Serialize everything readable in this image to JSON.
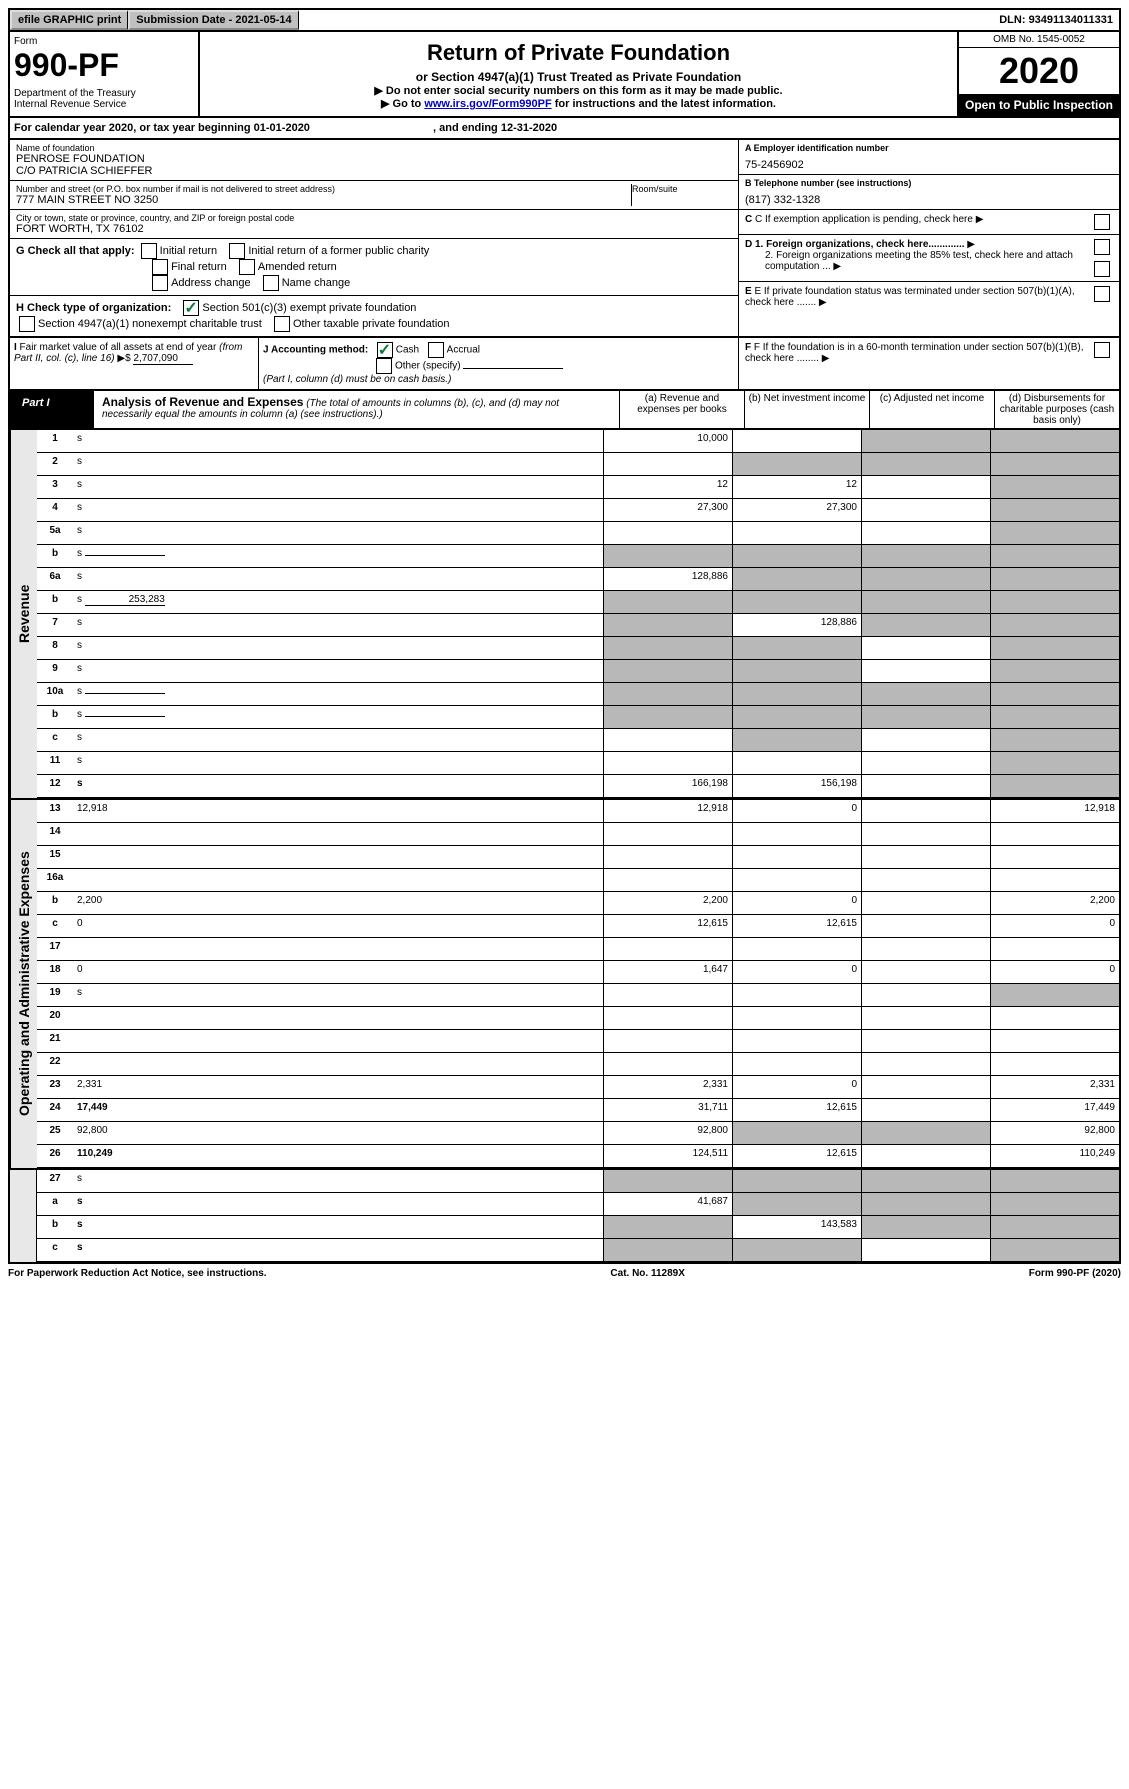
{
  "topbar": {
    "efile": "efile GRAPHIC print",
    "subdate_label": "Submission Date - ",
    "subdate": "2021-05-14",
    "dln_label": "DLN: ",
    "dln": "93491134011331"
  },
  "header": {
    "form_label": "Form",
    "form_number": "990-PF",
    "dept": "Department of the Treasury\nInternal Revenue Service",
    "title": "Return of Private Foundation",
    "subtitle": "or Section 4947(a)(1) Trust Treated as Private Foundation",
    "note1": "▶ Do not enter social security numbers on this form as it may be made public.",
    "note2_pre": "▶ Go to ",
    "note2_link": "www.irs.gov/Form990PF",
    "note2_post": " for instructions and the latest information.",
    "omb": "OMB No. 1545-0052",
    "year": "2020",
    "open": "Open to Public Inspection"
  },
  "calyear": {
    "text_pre": "For calendar year 2020, or tax year beginning ",
    "begin": "01-01-2020",
    "text_mid": " , and ending ",
    "end": "12-31-2020"
  },
  "info": {
    "name_label": "Name of foundation",
    "name": "PENROSE FOUNDATION\nC/O PATRICIA SCHIEFFER",
    "addr_label": "Number and street (or P.O. box number if mail is not delivered to street address)",
    "addr": "777 MAIN STREET NO 3250",
    "room_label": "Room/suite",
    "city_label": "City or town, state or province, country, and ZIP or foreign postal code",
    "city": "FORT WORTH, TX  76102",
    "a_label": "A Employer identification number",
    "a_val": "75-2456902",
    "b_label": "B Telephone number (see instructions)",
    "b_val": "(817) 332-1328",
    "c_label": "C If exemption application is pending, check here",
    "d1": "D 1. Foreign organizations, check here.............",
    "d2": "2. Foreign organizations meeting the 85% test, check here and attach computation ...",
    "e": "E If private foundation status was terminated under section 507(b)(1)(A), check here .......",
    "f": "F If the foundation is in a 60-month termination under section 507(b)(1)(B), check here ........"
  },
  "g": {
    "label": "G Check all that apply:",
    "opts": [
      "Initial return",
      "Initial return of a former public charity",
      "Final return",
      "Amended return",
      "Address change",
      "Name change"
    ]
  },
  "h": {
    "label": "H Check type of organization:",
    "opt1": "Section 501(c)(3) exempt private foundation",
    "opt2": "Section 4947(a)(1) nonexempt charitable trust",
    "opt3": "Other taxable private foundation"
  },
  "i": {
    "label": "I Fair market value of all assets at end of year (from Part II, col. (c), line 16) ▶$",
    "val": "2,707,090"
  },
  "j": {
    "label": "J Accounting method:",
    "cash": "Cash",
    "accrual": "Accrual",
    "other": "Other (specify)",
    "note": "(Part I, column (d) must be on cash basis.)"
  },
  "part1": {
    "label": "Part I",
    "title": "Analysis of Revenue and Expenses",
    "note": "(The total of amounts in columns (b), (c), and (d) may not necessarily equal the amounts in column (a) (see instructions).)",
    "col_a": "(a) Revenue and expenses per books",
    "col_b": "(b) Net investment income",
    "col_c": "(c) Adjusted net income",
    "col_d": "(d) Disbursements for charitable purposes (cash basis only)"
  },
  "sides": {
    "rev": "Revenue",
    "exp": "Operating and Administrative Expenses"
  },
  "rows": [
    {
      "n": "1",
      "d": "s",
      "a": "10,000",
      "b": "",
      "c": "s"
    },
    {
      "n": "2",
      "d": "s",
      "a": "",
      "b": "s",
      "c": "s",
      "special": true
    },
    {
      "n": "3",
      "d": "s",
      "a": "12",
      "b": "12",
      "c": ""
    },
    {
      "n": "4",
      "d": "s",
      "a": "27,300",
      "b": "27,300",
      "c": ""
    },
    {
      "n": "5a",
      "d": "s",
      "a": "",
      "b": "",
      "c": ""
    },
    {
      "n": "b",
      "d": "s",
      "a": "s",
      "b": "s",
      "c": "s",
      "inline": true
    },
    {
      "n": "6a",
      "d": "s",
      "a": "128,886",
      "b": "s",
      "c": "s"
    },
    {
      "n": "b",
      "d": "s",
      "a": "s",
      "b": "s",
      "c": "s",
      "inline": true,
      "inlineval": "253,283"
    },
    {
      "n": "7",
      "d": "s",
      "a": "s",
      "b": "128,886",
      "c": "s"
    },
    {
      "n": "8",
      "d": "s",
      "a": "s",
      "b": "s",
      "c": ""
    },
    {
      "n": "9",
      "d": "s",
      "a": "s",
      "b": "s",
      "c": ""
    },
    {
      "n": "10a",
      "d": "s",
      "a": "s",
      "b": "s",
      "c": "s",
      "inline": true
    },
    {
      "n": "b",
      "d": "s",
      "a": "s",
      "b": "s",
      "c": "s",
      "inline": true
    },
    {
      "n": "c",
      "d": "s",
      "a": "",
      "b": "s",
      "c": ""
    },
    {
      "n": "11",
      "d": "s",
      "a": "",
      "b": "",
      "c": ""
    },
    {
      "n": "12",
      "d": "s",
      "a": "166,198",
      "b": "156,198",
      "c": "",
      "bold": true
    }
  ],
  "exp_rows": [
    {
      "n": "13",
      "d": "12,918",
      "a": "12,918",
      "b": "0",
      "c": ""
    },
    {
      "n": "14",
      "d": "",
      "a": "",
      "b": "",
      "c": ""
    },
    {
      "n": "15",
      "d": "",
      "a": "",
      "b": "",
      "c": ""
    },
    {
      "n": "16a",
      "d": "",
      "a": "",
      "b": "",
      "c": ""
    },
    {
      "n": "b",
      "d": "2,200",
      "a": "2,200",
      "b": "0",
      "c": ""
    },
    {
      "n": "c",
      "d": "0",
      "a": "12,615",
      "b": "12,615",
      "c": ""
    },
    {
      "n": "17",
      "d": "",
      "a": "",
      "b": "",
      "c": ""
    },
    {
      "n": "18",
      "d": "0",
      "a": "1,647",
      "b": "0",
      "c": ""
    },
    {
      "n": "19",
      "d": "s",
      "a": "",
      "b": "",
      "c": ""
    },
    {
      "n": "20",
      "d": "",
      "a": "",
      "b": "",
      "c": ""
    },
    {
      "n": "21",
      "d": "",
      "a": "",
      "b": "",
      "c": ""
    },
    {
      "n": "22",
      "d": "",
      "a": "",
      "b": "",
      "c": ""
    },
    {
      "n": "23",
      "d": "2,331",
      "a": "2,331",
      "b": "0",
      "c": ""
    },
    {
      "n": "24",
      "d": "17,449",
      "a": "31,711",
      "b": "12,615",
      "c": "",
      "bold": true
    },
    {
      "n": "25",
      "d": "92,800",
      "a": "92,800",
      "b": "s",
      "c": "s"
    },
    {
      "n": "26",
      "d": "110,249",
      "a": "124,511",
      "b": "12,615",
      "c": "",
      "bold": true
    }
  ],
  "final_rows": [
    {
      "n": "27",
      "d": "s",
      "a": "s",
      "b": "s",
      "c": "s"
    },
    {
      "n": "a",
      "d": "s",
      "a": "41,687",
      "b": "s",
      "c": "s",
      "bold": true
    },
    {
      "n": "b",
      "d": "s",
      "a": "s",
      "b": "143,583",
      "c": "s",
      "bold": true
    },
    {
      "n": "c",
      "d": "s",
      "a": "s",
      "b": "s",
      "c": "",
      "bold": true
    }
  ],
  "footer": {
    "left": "For Paperwork Reduction Act Notice, see instructions.",
    "mid": "Cat. No. 11289X",
    "right": "Form 990-PF (2020)"
  }
}
